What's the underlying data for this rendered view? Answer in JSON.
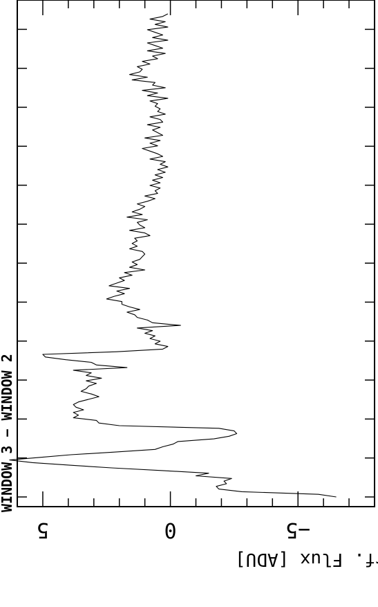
{
  "chart_data": {
    "type": "line",
    "orientation": "rotated-90",
    "title": "WINDOW 3 − WINDOW 2",
    "ylabel": "Mean Interf. Flux [ADU]",
    "xlabel": "",
    "ylim": [
      -8,
      6
    ],
    "y_ticks": [
      -5,
      0,
      5
    ],
    "y_tick_labels": [
      "−5",
      "0",
      "5"
    ],
    "grid": false,
    "series": [
      {
        "values": [
          -6.5,
          -5.8,
          -2.8,
          -1.9,
          -1.8,
          -2.2,
          -2.1,
          -2.4,
          -1.0,
          -1.5,
          0.3,
          2.3,
          3.9,
          5.4,
          6.3,
          5.1,
          3.9,
          2.2,
          0.6,
          0.3,
          -0.1,
          -0.3,
          -1.7,
          -2.3,
          -2.6,
          -2.5,
          -1.9,
          2.0,
          2.8,
          2.9,
          3.8,
          3.6,
          3.8,
          3.4,
          3.7,
          3.8,
          3.6,
          3.2,
          2.8,
          3.1,
          3.5,
          3.3,
          3.2,
          2.9,
          3.3,
          2.7,
          3.3,
          3.1,
          3.8,
          1.7,
          2.9,
          3.1,
          4.1,
          4.9,
          5.0,
          2.1,
          0.3,
          0.1,
          0.6,
          0.4,
          0.8,
          0.6,
          1.0,
          0.7,
          1.3,
          -0.4,
          0.7,
          0.9,
          1.3,
          1.4,
          1.7,
          1.2,
          1.6,
          1.9,
          1.9,
          2.5,
          2.2,
          1.8,
          2.1,
          1.6,
          2.4,
          2.1,
          1.8,
          2.0,
          1.5,
          1.8,
          1.0,
          1.6,
          1.3,
          1.5,
          1.2,
          1.1,
          1.0,
          1.1,
          1.6,
          1.3,
          1.5,
          1.3,
          1.4,
          0.8,
          1.0,
          1.6,
          1.0,
          1.2,
          1.3,
          0.9,
          1.7,
          1.1,
          1.5,
          1.2,
          1.0,
          1.3,
          0.9,
          0.6,
          1.0,
          0.5,
          0.6,
          0.4,
          0.8,
          0.4,
          0.7,
          0.3,
          0.6,
          0.2,
          0.5,
          0.1,
          0.4,
          0.2,
          0.8,
          0.3,
          0.5,
          0.8,
          1.1,
          0.5,
          0.8,
          0.4,
          1.0,
          0.3,
          0.5,
          0.7,
          0.4,
          0.9,
          0.3,
          0.4,
          0.8,
          0.2,
          0.5,
          0.4,
          0.6,
          0.5,
          0.8,
          0.1,
          0.9,
          0.5,
          1.1,
          0.2,
          0.7,
          0.6,
          1.5,
          0.9,
          1.6,
          1.2,
          1.1,
          1.3,
          0.8,
          1.1,
          0.5,
          0.7,
          0.2,
          0.9,
          0.3,
          0.6,
          0.9,
          0.1,
          0.7,
          0.3,
          0.6,
          0.9,
          0.1,
          0.6,
          0.2,
          0.8,
          0.3,
          0.1
        ]
      }
    ]
  }
}
